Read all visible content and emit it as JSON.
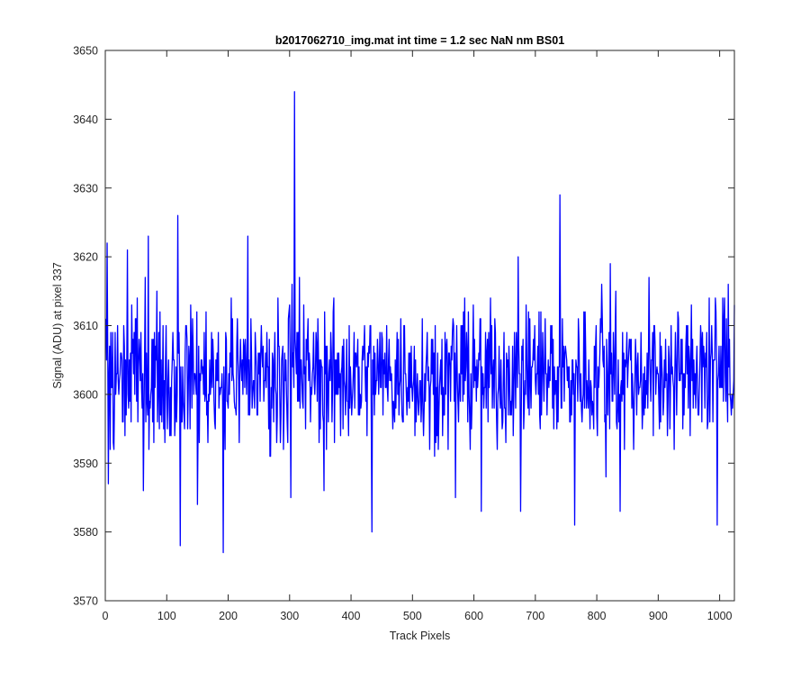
{
  "chart_data": {
    "type": "line",
    "title": "b2017062710_img.mat int time = 1.2 sec  NaN nm BS01",
    "xlabel": "Track Pixels",
    "ylabel": "Signal (ADU) at pixel 337",
    "xlim": [
      0,
      1024
    ],
    "ylim": [
      3570,
      3650
    ],
    "xticks": [
      0,
      100,
      200,
      300,
      400,
      500,
      600,
      700,
      800,
      900,
      1000
    ],
    "yticks": [
      3570,
      3580,
      3590,
      3600,
      3610,
      3620,
      3630,
      3640,
      3650
    ],
    "grid": false,
    "box": true,
    "series": [
      {
        "color": "#0000ff",
        "points_description_x_range": [
          1,
          1024
        ],
        "baseline_mean": 3603,
        "noise_halfrange": 9,
        "notable_points": [
          {
            "x": 3,
            "y": 3622
          },
          {
            "x": 5,
            "y": 3587
          },
          {
            "x": 14,
            "y": 3592
          },
          {
            "x": 36,
            "y": 3621
          },
          {
            "x": 70,
            "y": 3623
          },
          {
            "x": 118,
            "y": 3626
          },
          {
            "x": 122,
            "y": 3578
          },
          {
            "x": 150,
            "y": 3584
          },
          {
            "x": 192,
            "y": 3577
          },
          {
            "x": 232,
            "y": 3623
          },
          {
            "x": 302,
            "y": 3585
          },
          {
            "x": 308,
            "y": 3644
          },
          {
            "x": 356,
            "y": 3586
          },
          {
            "x": 434,
            "y": 3580
          },
          {
            "x": 570,
            "y": 3585
          },
          {
            "x": 612,
            "y": 3583
          },
          {
            "x": 672,
            "y": 3620
          },
          {
            "x": 676,
            "y": 3583
          },
          {
            "x": 740,
            "y": 3629
          },
          {
            "x": 764,
            "y": 3581
          },
          {
            "x": 822,
            "y": 3619
          },
          {
            "x": 838,
            "y": 3583
          },
          {
            "x": 996,
            "y": 3581
          },
          {
            "x": 1014,
            "y": 3616
          }
        ]
      }
    ]
  }
}
